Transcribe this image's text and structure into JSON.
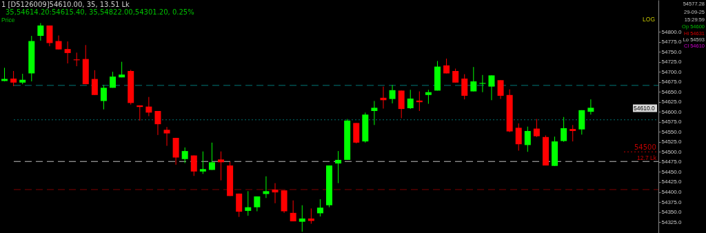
{
  "chart_data": {
    "type": "candlestick",
    "title": "1 [D5126009]54610.00, 35, 13.51 Lk",
    "subtitle": "35,54614.20:54615.40, 35,54822.00,54301.20, 0.25%",
    "categories": [
      null,
      null,
      null,
      null,
      null,
      null,
      null,
      null,
      null,
      null,
      null,
      null,
      null,
      null,
      null,
      null,
      null,
      null,
      null,
      null,
      null,
      null,
      null,
      null,
      null,
      null,
      null,
      null,
      null,
      null,
      null,
      null,
      null,
      null,
      null,
      null,
      null,
      null,
      null,
      null,
      null,
      null,
      null,
      null,
      null,
      null,
      null,
      null,
      null,
      null,
      null,
      null,
      null,
      null,
      null,
      null,
      null,
      null,
      null,
      null,
      null,
      null,
      null,
      null,
      null,
      null,
      null,
      null,
      null,
      null,
      null,
      null,
      null
    ],
    "ohlc": [
      [
        54677,
        54710,
        54676,
        54682
      ],
      [
        54683,
        54702,
        54664,
        54673
      ],
      [
        54673,
        54695,
        54669,
        54680
      ],
      [
        54696,
        54790,
        54676,
        54777
      ],
      [
        54790,
        54822,
        54778,
        54816
      ],
      [
        54816,
        54816,
        54764,
        54772
      ],
      [
        54777,
        54791,
        54756,
        54756
      ],
      [
        54757,
        54776,
        54721,
        54747
      ],
      [
        54731,
        54748,
        54714,
        54729
      ],
      [
        54732,
        54767,
        54669,
        54669
      ],
      [
        54682,
        54704,
        54642,
        54642
      ],
      [
        54627,
        54667,
        54606,
        54660
      ],
      [
        54660,
        54700,
        54660,
        54688
      ],
      [
        54686,
        54725,
        54686,
        54693
      ],
      [
        54702,
        54705,
        54618,
        54622
      ],
      [
        54616,
        54616,
        54578,
        54612
      ],
      [
        54613,
        54637,
        54589,
        54598
      ],
      [
        54602,
        54602,
        54542,
        54569
      ],
      [
        54555,
        54562,
        54515,
        54546
      ],
      [
        54535,
        54535,
        54468,
        54486
      ],
      [
        54482,
        54511,
        54472,
        54502
      ],
      [
        54491,
        54491,
        54440,
        54451
      ],
      [
        54451,
        54501,
        54445,
        54457
      ],
      [
        54455,
        54523,
        54455,
        54474
      ],
      [
        54481,
        54501,
        54429,
        54474
      ],
      [
        54466,
        54475,
        54390,
        54390
      ],
      [
        54396,
        54396,
        54338,
        54351
      ],
      [
        54353,
        54402,
        54341,
        54362
      ],
      [
        54362,
        54389,
        54352,
        54389
      ],
      [
        54395,
        54439,
        54385,
        54402
      ],
      [
        54406,
        54422,
        54372,
        54399
      ],
      [
        54404,
        54404,
        54348,
        54352
      ],
      [
        54348,
        54379,
        54327,
        54327
      ],
      [
        54326,
        54367,
        54301,
        54334
      ],
      [
        54334,
        54359,
        54321,
        54328
      ],
      [
        54347,
        54382,
        54339,
        54361
      ],
      [
        54367,
        54466,
        54362,
        54466
      ],
      [
        54471,
        54502,
        54422,
        54480
      ],
      [
        54480,
        54582,
        54480,
        54578
      ],
      [
        54572,
        54572,
        54521,
        54523
      ],
      [
        54526,
        54598,
        54523,
        54593
      ],
      [
        54602,
        54627,
        54567,
        54610
      ],
      [
        54635,
        54663,
        54608,
        54629
      ],
      [
        54632,
        54667,
        54621,
        54654
      ],
      [
        54653,
        54653,
        54584,
        54607
      ],
      [
        54609,
        54655,
        54607,
        54633
      ],
      [
        54628,
        54651,
        54602,
        54624
      ],
      [
        54642,
        54655,
        54620,
        54649
      ],
      [
        54653,
        54727,
        54653,
        54713
      ],
      [
        54716,
        54733,
        54696,
        54696
      ],
      [
        54702,
        54708,
        54673,
        54673
      ],
      [
        54683,
        54694,
        54631,
        54640
      ],
      [
        54651,
        54712,
        54651,
        54676
      ],
      [
        54670,
        54692,
        54649,
        54672
      ],
      [
        54663,
        54691,
        54629,
        54691
      ],
      [
        54679,
        54679,
        54632,
        54640
      ],
      [
        54642,
        54656,
        54549,
        54551
      ],
      [
        54560,
        54571,
        54503,
        54519
      ],
      [
        54517,
        54563,
        54500,
        54552
      ],
      [
        54558,
        54582,
        54537,
        54539
      ],
      [
        54537,
        54541,
        54466,
        54466
      ],
      [
        54465,
        54538,
        54465,
        54526
      ],
      [
        54527,
        54587,
        54525,
        54559
      ],
      [
        54557,
        54567,
        54526,
        54552
      ],
      [
        54556,
        54604,
        54543,
        54604
      ],
      [
        54600,
        54631,
        54593,
        54610
      ],
      null,
      null,
      null,
      null,
      null,
      null,
      null
    ],
    "log": true,
    "ylim": [
      54298,
      54880
    ],
    "yticks": [
      {
        "value": 54325,
        "label": "54325.0"
      },
      {
        "value": 54350,
        "label": "54350.0"
      },
      {
        "value": 54375,
        "label": "54375.0"
      },
      {
        "value": 54400,
        "label": "54400.0"
      },
      {
        "value": 54425,
        "label": "54425.0"
      },
      {
        "value": 54450,
        "label": "54450.0"
      },
      {
        "value": 54475,
        "label": "54475.0"
      },
      {
        "value": 54500,
        "label": "54500.0"
      },
      {
        "value": 54525,
        "label": "54525.0"
      },
      {
        "value": 54550,
        "label": "54550.0"
      },
      {
        "value": 54575,
        "label": "54575.0"
      },
      {
        "value": 54600,
        "label": "54600.0"
      },
      {
        "value": 54625,
        "label": "54625.0"
      },
      {
        "value": 54650,
        "label": "54650.0"
      },
      {
        "value": 54675,
        "label": "54675.0"
      },
      {
        "value": 54700,
        "label": "54700.0"
      },
      {
        "value": 54725,
        "label": "54725.0"
      },
      {
        "value": 54750,
        "label": "54750.0"
      },
      {
        "value": 54775,
        "label": "54775.0"
      },
      {
        "value": 54800,
        "label": "54800.0"
      }
    ],
    "tick_labels": "y",
    "grid": false,
    "ref_lines": [
      {
        "axis": "y",
        "value": 54666,
        "color": "#007878",
        "line_style": "dashed"
      },
      {
        "axis": "y",
        "value": 54580,
        "color": "#007070",
        "line_style": "dotted"
      },
      {
        "axis": "y",
        "value": 54476,
        "color": "#c0c0c0",
        "line_style": "dashed"
      },
      {
        "axis": "y",
        "value": 54406,
        "color": "#800000",
        "line_style": "dashed"
      },
      {
        "axis": "y",
        "value": 54500,
        "label": "54500",
        "color": "#c00000",
        "line_style": "dotted"
      }
    ],
    "annotations": [
      "Price",
      "LOG",
      "54577.28",
      "29-09-25",
      "15:29:59",
      "Op 54600",
      "Hi 54631",
      "Lo 54593",
      "Cl 54610",
      "12.7 Lk",
      "54610.0"
    ]
  }
}
